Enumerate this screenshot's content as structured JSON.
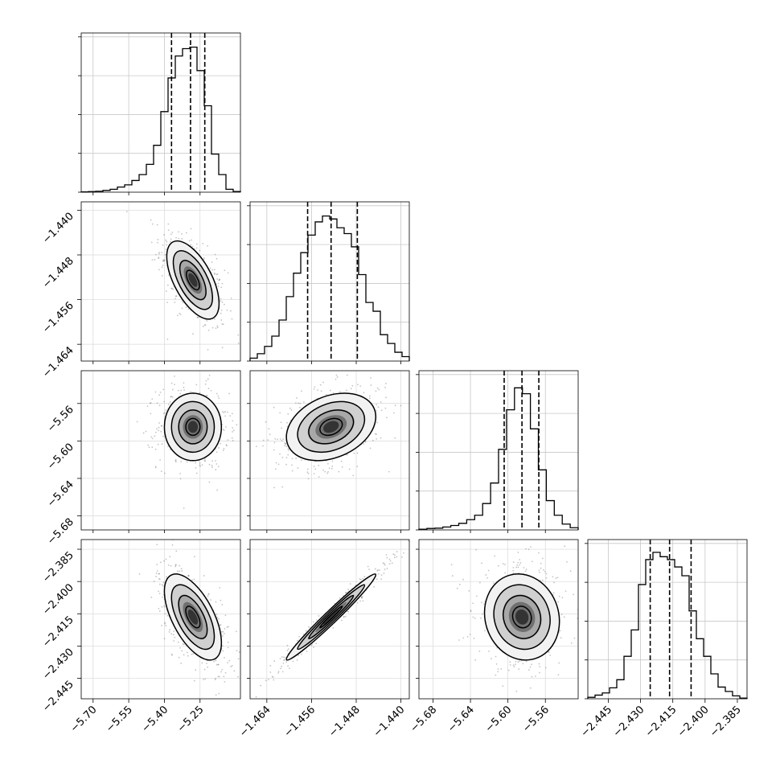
{
  "chart_data": {
    "type": "corner",
    "title": "",
    "parameters": [
      {
        "index": 0,
        "range": [
          -5.75,
          -5.08
        ],
        "ticks": [
          -5.7,
          -5.55,
          -5.4,
          -5.25
        ],
        "tick_labels": [
          "−5.70",
          "−5.55",
          "−5.40",
          "−5.25"
        ],
        "quantiles": [
          -5.37,
          -5.29,
          -5.23
        ],
        "mode": -5.28,
        "hist": [
          0.002,
          0.004,
          0.006,
          0.012,
          0.02,
          0.035,
          0.05,
          0.08,
          0.12,
          0.19,
          0.32,
          0.55,
          0.78,
          0.93,
          0.98,
          0.99,
          0.83,
          0.59,
          0.26,
          0.12,
          0.02,
          0.005
        ]
      },
      {
        "index": 1,
        "range": [
          -1.467,
          -1.4385
        ],
        "ticks": [
          -1.464,
          -1.456,
          -1.448,
          -1.44
        ],
        "tick_labels": [
          "−1.464",
          "−1.456",
          "−1.448",
          "−1.440"
        ],
        "quantiles": [
          -1.4567,
          -1.4525,
          -1.4478
        ],
        "mode": -1.4528,
        "hist": [
          0.02,
          0.05,
          0.1,
          0.17,
          0.28,
          0.44,
          0.6,
          0.74,
          0.86,
          0.95,
          0.99,
          0.97,
          0.91,
          0.87,
          0.78,
          0.59,
          0.4,
          0.34,
          0.18,
          0.12,
          0.06,
          0.03
        ]
      },
      {
        "index": 2,
        "range": [
          -5.695,
          -5.525
        ],
        "ticks": [
          -5.68,
          -5.64,
          -5.6,
          -5.56
        ],
        "tick_labels": [
          "−5.68",
          "−5.64",
          "−5.60",
          "−5.56"
        ],
        "quantiles": [
          -5.604,
          -5.585,
          -5.567
        ],
        "mode": -5.584,
        "hist": [
          0.005,
          0.01,
          0.012,
          0.02,
          0.03,
          0.045,
          0.07,
          0.1,
          0.18,
          0.32,
          0.55,
          0.82,
          0.97,
          0.93,
          0.69,
          0.41,
          0.2,
          0.1,
          0.04,
          0.015
        ]
      },
      {
        "index": 3,
        "range": [
          -2.4545,
          -2.3805
        ],
        "ticks": [
          -2.445,
          -2.43,
          -2.415,
          -2.4,
          -2.385
        ],
        "tick_labels": [
          "−2.445",
          "−2.430",
          "−2.415",
          "−2.400",
          "−2.385"
        ],
        "quantiles": [
          -2.4255,
          -2.4165,
          -2.4065
        ],
        "mode": -2.4165,
        "hist": [
          0.01,
          0.025,
          0.04,
          0.075,
          0.13,
          0.29,
          0.47,
          0.78,
          0.95,
          1.0,
          0.97,
          0.95,
          0.9,
          0.84,
          0.6,
          0.41,
          0.29,
          0.17,
          0.08,
          0.05,
          0.02,
          0.005
        ]
      }
    ],
    "pairs": [
      {
        "x": 0,
        "y": 1,
        "mean": [
          -5.28,
          -1.4525
        ],
        "sd": [
          0.055,
          0.0035
        ],
        "rho": -0.6
      },
      {
        "x": 0,
        "y": 2,
        "mean": [
          -5.28,
          -5.585
        ],
        "sd": [
          0.06,
          0.018
        ],
        "rho": 0.0
      },
      {
        "x": 1,
        "y": 2,
        "mean": [
          -1.4525,
          -5.585
        ],
        "sd": [
          0.004,
          0.018
        ],
        "rho": 0.3
      },
      {
        "x": 0,
        "y": 3,
        "mean": [
          -5.28,
          -2.4165
        ],
        "sd": [
          0.06,
          0.01
        ],
        "rho": -0.6
      },
      {
        "x": 1,
        "y": 3,
        "mean": [
          -1.4525,
          -2.4165
        ],
        "sd": [
          0.004,
          0.01
        ],
        "rho": 0.98
      },
      {
        "x": 2,
        "y": 3,
        "mean": [
          -5.585,
          -2.4165
        ],
        "sd": [
          0.02,
          0.01
        ],
        "rho": -0.1
      }
    ],
    "grid": true,
    "legend": "none"
  }
}
